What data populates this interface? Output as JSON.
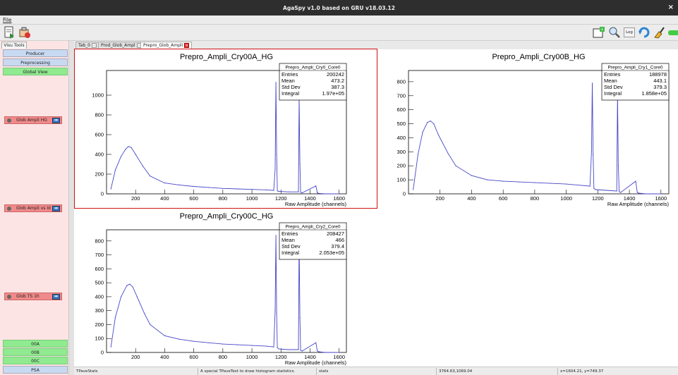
{
  "window": {
    "title": "AgaSpy v1.0 based on GRU v18.03.12",
    "close": "×"
  },
  "menu": {
    "file": "File"
  },
  "toolbar": {
    "icons": [
      "save-icon",
      "open-icon",
      "new-canvas-icon",
      "zoom-icon",
      "log-toggle",
      "refresh-icon",
      "clear-icon",
      "toggle-icon"
    ],
    "log_label": "Log"
  },
  "left_panel": {
    "tab": "Visu Tools",
    "producer": "Producer",
    "preprocessing": "Preprocessing",
    "global_view": "Global View",
    "glob_ampli_hg": "Glob Ampli HG",
    "glob_ampli_vs_id": "Glob Ampli vs Id",
    "glob_ts_1h": "Glob TS 1h",
    "c00a": "00A",
    "c00b": "00B",
    "c00c": "00C",
    "psa": "PSA"
  },
  "tabs": [
    {
      "label": "Tab_0"
    },
    {
      "label": "Prod_Glob_Ampl"
    },
    {
      "label": "Prepro_Glob_Ampli"
    }
  ],
  "status": {
    "object": "TPaveStats",
    "info": "A special TPaveText to draw histogram statistics.",
    "name": "stats",
    "coords": "3764.63,1069.04",
    "xy": "x=1604.21, y=749.37"
  },
  "chart_data": [
    {
      "type": "line",
      "title": "Prepro_Ampli_Cry00A_HG",
      "xlabel": "Raw Amplitude (channels)",
      "xlim": [
        0,
        1650
      ],
      "ylim": [
        0,
        1250
      ],
      "xticks": [
        200,
        400,
        600,
        800,
        1000,
        1200,
        1400,
        1600
      ],
      "yticks": [
        0,
        200,
        400,
        600,
        800,
        1000
      ],
      "x": [
        30,
        60,
        100,
        130,
        150,
        170,
        200,
        250,
        300,
        400,
        500,
        600,
        700,
        800,
        900,
        1000,
        1100,
        1150,
        1160,
        1165,
        1170,
        1175,
        1185,
        1250,
        1320,
        1325,
        1330,
        1335,
        1345,
        1440,
        1450,
        1460,
        1500,
        1600
      ],
      "y": [
        50,
        240,
        380,
        450,
        480,
        470,
        400,
        280,
        180,
        110,
        90,
        75,
        65,
        55,
        50,
        45,
        40,
        35,
        250,
        1130,
        400,
        30,
        25,
        20,
        20,
        980,
        300,
        15,
        10,
        80,
        10,
        5,
        0,
        0
      ],
      "series": [
        {
          "name": "Prepro_Ampli_Cry0_Core0"
        }
      ],
      "legend": {
        "position": "top-right",
        "title": "Prepro_Ampli_Cry0_Core0",
        "entries_label": "Entries",
        "entries": "200242",
        "mean_label": "Mean",
        "mean": "473.2",
        "std_label": "Std Dev",
        "std": "387.3",
        "int_label": "Integral",
        "integral": "1.97e+05"
      }
    },
    {
      "type": "line",
      "title": "Prepro_Ampli_Cry00B_HG",
      "xlabel": "Raw Amplitude (channels)",
      "xlim": [
        0,
        1650
      ],
      "ylim": [
        0,
        880
      ],
      "xticks": [
        200,
        400,
        600,
        800,
        1000,
        1200,
        1400,
        1600
      ],
      "yticks": [
        0,
        100,
        200,
        300,
        400,
        500,
        600,
        700,
        800
      ],
      "x": [
        30,
        60,
        90,
        120,
        140,
        160,
        190,
        250,
        300,
        400,
        500,
        600,
        700,
        800,
        900,
        1000,
        1100,
        1150,
        1160,
        1165,
        1170,
        1175,
        1185,
        1250,
        1320,
        1325,
        1330,
        1335,
        1345,
        1440,
        1450,
        1460,
        1500,
        1600
      ],
      "y": [
        30,
        280,
        440,
        510,
        520,
        500,
        420,
        290,
        200,
        130,
        100,
        90,
        85,
        80,
        75,
        70,
        60,
        55,
        300,
        790,
        280,
        40,
        30,
        25,
        20,
        710,
        200,
        15,
        10,
        90,
        10,
        5,
        0,
        0
      ],
      "series": [
        {
          "name": "Prepro_Ampli_Cry1_Core0"
        }
      ],
      "legend": {
        "position": "top-right",
        "title": "Prepro_Ampli_Cry1_Core0",
        "entries_label": "Entries",
        "entries": "188978",
        "mean_label": "Mean",
        "mean": "443.1",
        "std_label": "Std Dev",
        "std": "379.3",
        "int_label": "Integral",
        "integral": "1.858e+05"
      }
    },
    {
      "type": "line",
      "title": "Prepro_Ampli_Cry00C_HG",
      "xlabel": "Raw Amplitude (channels)",
      "xlim": [
        0,
        1650
      ],
      "ylim": [
        0,
        880
      ],
      "xticks": [
        200,
        400,
        600,
        800,
        1000,
        1200,
        1400,
        1600
      ],
      "yticks": [
        0,
        100,
        200,
        300,
        400,
        500,
        600,
        700,
        800
      ],
      "x": [
        30,
        60,
        100,
        140,
        160,
        180,
        210,
        260,
        300,
        400,
        500,
        600,
        700,
        800,
        900,
        1000,
        1100,
        1150,
        1160,
        1165,
        1170,
        1175,
        1185,
        1250,
        1320,
        1325,
        1330,
        1335,
        1345,
        1440,
        1450,
        1460,
        1500,
        1600
      ],
      "y": [
        40,
        250,
        400,
        480,
        490,
        470,
        400,
        280,
        200,
        120,
        95,
        80,
        70,
        60,
        55,
        50,
        45,
        40,
        300,
        840,
        280,
        35,
        25,
        20,
        20,
        820,
        250,
        15,
        10,
        70,
        10,
        5,
        0,
        0
      ],
      "series": [
        {
          "name": "Prepro_Ampli_Cry2_Core0"
        }
      ],
      "legend": {
        "position": "top-right",
        "title": "Prepro_Ampli_Cry2_Core0",
        "entries_label": "Entries",
        "entries": "208427",
        "mean_label": "Mean",
        "mean": "466",
        "std_label": "Std Dev",
        "std": "379.4",
        "int_label": "Integral",
        "integral": "2.053e+05"
      }
    }
  ]
}
